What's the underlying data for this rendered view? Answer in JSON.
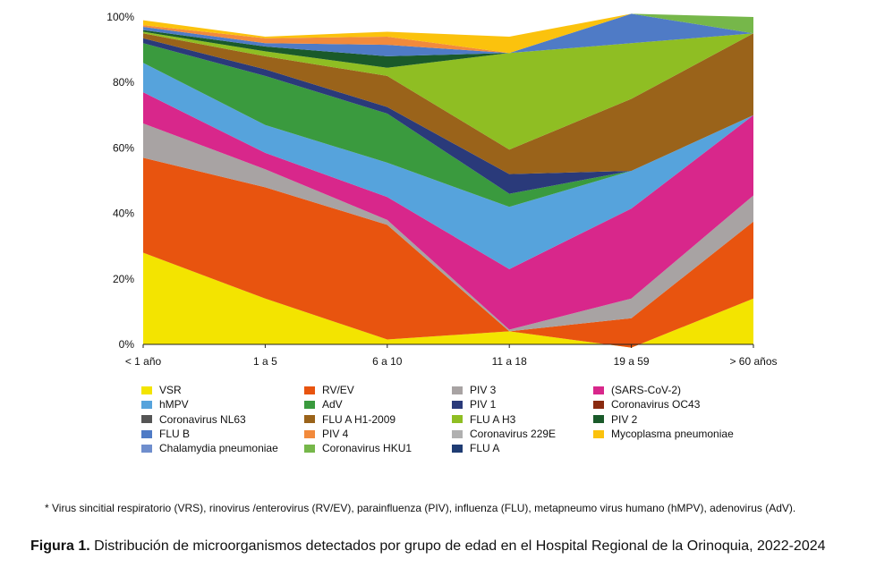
{
  "chart_data": {
    "type": "area",
    "stacked": true,
    "normalized_percent": true,
    "categories": [
      "< 1 año",
      "1 a 5",
      "6 a 10",
      "11 a 18",
      "19 a 59",
      "> 60 años"
    ],
    "y_ticks": [
      "0%",
      "20%",
      "40%",
      "60%",
      "80%",
      "100%"
    ],
    "ylim": [
      0,
      100
    ],
    "grid": false,
    "legend_position": "bottom",
    "series": [
      {
        "name": "VSR",
        "color": "#f3e400",
        "values": [
          28,
          14,
          1.5,
          4,
          -1,
          14
        ]
      },
      {
        "name": "RV/EV",
        "color": "#e8540f",
        "values": [
          29,
          34,
          35,
          0,
          9,
          23.5
        ]
      },
      {
        "name": "PIV 3",
        "color": "#a8a3a3",
        "values": [
          10.5,
          5.5,
          1.5,
          0.5,
          6,
          8
        ]
      },
      {
        "name": "(SARS-CoV-2)",
        "color": "#d8278b",
        "values": [
          9.5,
          5,
          7,
          18.5,
          27.5,
          24.5
        ]
      },
      {
        "name": "hMPV",
        "color": "#56a3dc",
        "values": [
          9,
          8.5,
          10.5,
          19,
          11.5,
          0
        ]
      },
      {
        "name": "AdV",
        "color": "#3a9a3e",
        "values": [
          6,
          15,
          15,
          4,
          0,
          0
        ]
      },
      {
        "name": "PIV 1",
        "color": "#2a3a7a",
        "values": [
          1.5,
          2,
          2,
          6,
          0,
          0
        ]
      },
      {
        "name": "Coronavirus OC43",
        "color": "#8a2a10",
        "values": [
          0,
          0,
          0,
          0,
          0,
          0
        ]
      },
      {
        "name": "Coronavirus NL63",
        "color": "#555555",
        "values": [
          0,
          0,
          0,
          0,
          0,
          0
        ]
      },
      {
        "name": "FLU A H1-2009",
        "color": "#9a631a",
        "values": [
          1.5,
          4,
          9.5,
          7.5,
          22,
          25
        ]
      },
      {
        "name": "FLU A H3",
        "color": "#8fbe23",
        "values": [
          0.5,
          1.5,
          2.5,
          29.5,
          17,
          0
        ]
      },
      {
        "name": "PIV 2",
        "color": "#1a5a2a",
        "values": [
          0.5,
          1.5,
          3.5,
          0,
          0,
          0
        ]
      },
      {
        "name": "FLU B",
        "color": "#4f7bc6",
        "values": [
          1,
          1,
          3.5,
          0,
          9,
          0
        ]
      },
      {
        "name": "PIV 4",
        "color": "#f28a3c",
        "values": [
          0.5,
          1.5,
          2.5,
          0,
          0,
          0
        ]
      },
      {
        "name": "Coronavirus 229E",
        "color": "#b0b0b0",
        "values": [
          0,
          0,
          0,
          0,
          0,
          0
        ]
      },
      {
        "name": "Mycoplasma pneumoniae",
        "color": "#fbc20d",
        "values": [
          1.5,
          0.5,
          1.5,
          5,
          0,
          0
        ]
      },
      {
        "name": "Chalamydia pneumoniae",
        "color": "#6f8ecd",
        "values": [
          0,
          0,
          0,
          0,
          0,
          0
        ]
      },
      {
        "name": "Coronavirus HKU1",
        "color": "#76b74a",
        "values": [
          0,
          0,
          0,
          0,
          0,
          5
        ]
      },
      {
        "name": "FLU A",
        "color": "#1f3c73",
        "values": [
          0,
          0,
          0,
          0,
          0,
          0
        ]
      }
    ],
    "legend_order": [
      "VSR",
      "RV/EV",
      "PIV 3",
      "(SARS-CoV-2)",
      "hMPV",
      "AdV",
      "PIV 1",
      "Coronavirus OC43",
      "Coronavirus NL63",
      "FLU A H1-2009",
      "FLU A H3",
      "PIV 2",
      "FLU B",
      "PIV 4",
      "Coronavirus 229E",
      "Mycoplasma pneumoniae",
      "Chalamydia pneumoniae",
      "Coronavirus HKU1",
      "FLU A"
    ]
  },
  "footnote": "* Virus sincitial respiratorio (VRS), rinovirus /enterovirus (RV/EV), parainfluenza (PIV), influenza (FLU), metapneumo virus humano (hMPV), adenovirus (AdV).",
  "caption": {
    "label": "Figura 1.",
    "text": " Distribución de microorganismos detectados por grupo de edad en el Hospital Regional de la Orinoquia, 2022-2024"
  }
}
